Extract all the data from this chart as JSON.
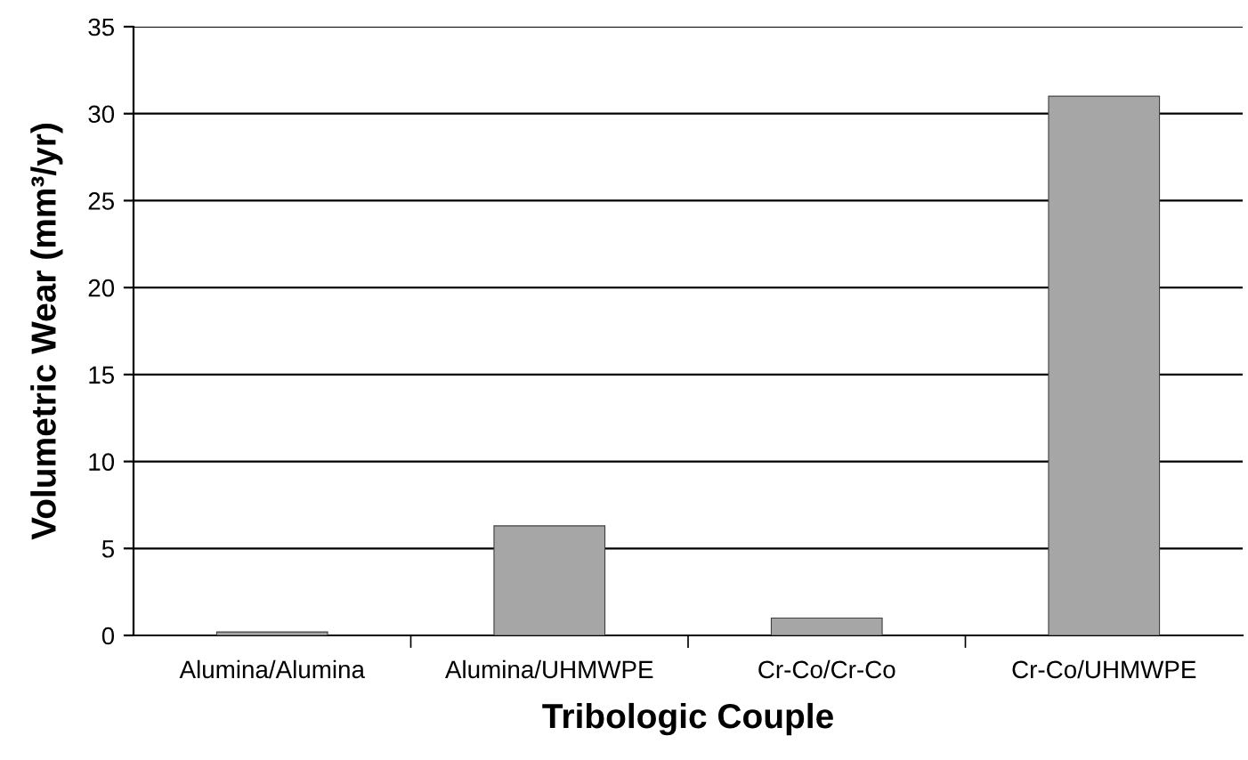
{
  "chart_data": {
    "type": "bar",
    "xlabel": "Tribologic Couple",
    "ylabel": "Volumetric Wear (mm³/yr)",
    "categories": [
      "Alumina/Alumina",
      "Alumina/UHMWPE",
      "Cr-Co/Cr-Co",
      "Cr-Co/UHMWPE"
    ],
    "values": [
      0.2,
      6.3,
      1,
      31
    ],
    "color": "#a6a6a6",
    "ylim": [
      0,
      35
    ],
    "yticks": [
      0,
      5,
      10,
      15,
      20,
      25,
      30,
      35
    ],
    "grid": "y",
    "legend": false
  }
}
